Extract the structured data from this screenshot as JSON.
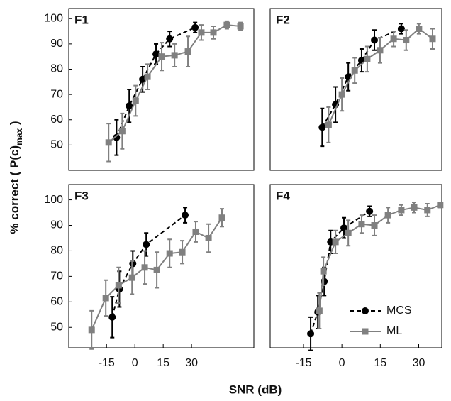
{
  "x_label": "SNR (dB)",
  "y_label": {
    "main": "% correct ( P(c)",
    "sub": "max",
    "end": " )"
  },
  "chart_data": [
    {
      "type": "line",
      "title": "F1",
      "xlim": [
        -35,
        63
      ],
      "ylim": [
        40,
        104
      ],
      "yticks": [
        50,
        60,
        70,
        80,
        90,
        100
      ],
      "series": [
        {
          "color": "#000000",
          "line_style": "dashed",
          "marker": "circle",
          "x": [
            -9.7,
            -3,
            4.1,
            11.2,
            18.4,
            31.9
          ],
          "values": [
            53,
            65.5,
            76,
            86,
            92,
            96.5
          ],
          "errors": [
            7,
            6.5,
            5,
            4,
            3,
            2
          ]
        },
        {
          "color": "#808080",
          "line_style": "solid",
          "marker": "square",
          "x": [
            -13.9,
            -6.7,
            0.4,
            6.7,
            14.2,
            21,
            28.1,
            35.2,
            41.6,
            48.7,
            55.9
          ],
          "values": [
            51,
            55.5,
            67.5,
            77,
            85,
            85.5,
            87,
            94.5,
            94.5,
            97.5,
            97
          ],
          "errors": [
            7.5,
            7,
            6,
            5,
            5.5,
            4.5,
            6,
            3,
            2.5,
            1.5,
            1.5
          ]
        }
      ]
    },
    {
      "type": "line",
      "title": "F2",
      "xlim": [
        -28,
        39
      ],
      "ylim": [
        40,
        104
      ],
      "series": [
        {
          "color": "#000000",
          "line_style": "dashed",
          "marker": "circle",
          "x": [
            -7.7,
            -2.5,
            2.5,
            7.7,
            12.7,
            23.2
          ],
          "values": [
            57,
            66,
            77,
            83.5,
            91.5,
            96
          ],
          "errors": [
            7.5,
            7,
            5.5,
            4.5,
            4,
            2
          ]
        },
        {
          "color": "#808080",
          "line_style": "solid",
          "marker": "square",
          "x": [
            -5.2,
            0,
            5,
            9.9,
            14.9,
            20.2,
            25.1,
            30.1,
            35.4
          ],
          "values": [
            58,
            70,
            79.5,
            84,
            87.5,
            92,
            91.5,
            96,
            92
          ],
          "errors": [
            7,
            6.5,
            5,
            5,
            5,
            3,
            4,
            2,
            4
          ]
        }
      ]
    },
    {
      "type": "line",
      "title": "F3",
      "xlim": [
        -35,
        63
      ],
      "ylim": [
        42,
        106
      ],
      "yticks": [
        50,
        60,
        70,
        80,
        90,
        100
      ],
      "xticks": [
        -15,
        0,
        15,
        30
      ],
      "series": [
        {
          "color": "#000000",
          "line_style": "dashed",
          "marker": "circle",
          "x": [
            -12,
            -8.2,
            -1.1,
            6,
            26.6
          ],
          "values": [
            54,
            65,
            75,
            82.5,
            94
          ],
          "errors": [
            8,
            7,
            5,
            4.5,
            3
          ]
        },
        {
          "color": "#808080",
          "line_style": "solid",
          "marker": "square",
          "x": [
            -22.9,
            -15.4,
            -8.6,
            -1.5,
            5.2,
            11.6,
            18.4,
            25.1,
            32.2,
            39,
            46.1
          ],
          "values": [
            49,
            61.5,
            66.5,
            69.5,
            73.5,
            72.5,
            79,
            79.5,
            87.5,
            85,
            93
          ],
          "errors": [
            7.5,
            7,
            7,
            6.5,
            6.5,
            7,
            5.5,
            4.5,
            4,
            5.5,
            3.5
          ]
        }
      ]
    },
    {
      "type": "line",
      "title": "F4",
      "xlim": [
        -28,
        39
      ],
      "ylim": [
        42,
        106
      ],
      "xticks": [
        -15,
        0,
        15,
        30
      ],
      "legend": "lower right",
      "series": [
        {
          "name": "MCS",
          "color": "#000000",
          "line_style": "dashed",
          "marker": "circle",
          "x": [
            -12.2,
            -9.4,
            -6.9,
            -4.4,
            0.8,
            10.8
          ],
          "values": [
            47.5,
            56,
            68,
            83.5,
            89,
            95.5
          ],
          "errors": [
            6.5,
            6.5,
            5.5,
            4.5,
            4,
            2
          ]
        },
        {
          "name": "ML",
          "color": "#808080",
          "line_style": "solid",
          "marker": "square",
          "x": [
            -8.8,
            -7.2,
            -2.5,
            2.5,
            7.7,
            12.7,
            18,
            23.2,
            28.2,
            33.4,
            38.4
          ],
          "values": [
            56.5,
            72,
            83.5,
            87,
            90.5,
            90,
            94,
            96,
            97,
            96,
            98
          ],
          "errors": [
            7,
            5.5,
            4.5,
            5,
            3.5,
            4,
            3,
            2,
            2,
            2.5,
            1
          ]
        }
      ]
    }
  ]
}
